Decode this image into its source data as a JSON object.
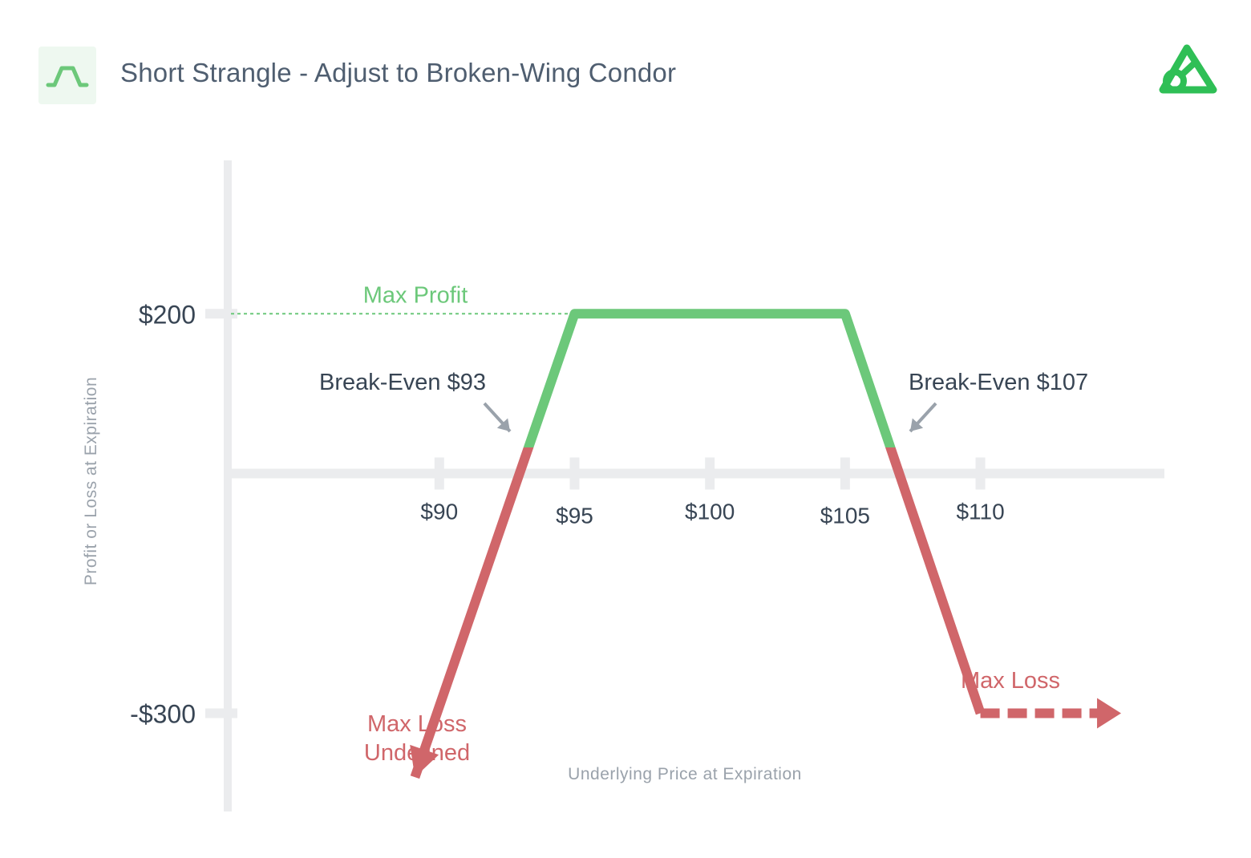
{
  "header": {
    "title": "Short Strangle - Adjust to Broken-Wing Condor",
    "badge_icon": "payoff-trapezoid-icon",
    "logo_icon": "brand-logo-icon"
  },
  "colors": {
    "profit": "#6cc87a",
    "loss": "#d0666a",
    "axis": "#ebecee",
    "text": "#384554",
    "muted": "#9aa2ab",
    "arrow": "#9aa2ab"
  },
  "chart_data": {
    "type": "line",
    "title": "Short Strangle - Adjust to Broken-Wing Condor",
    "xlabel": "Underlying Price at Expiration",
    "ylabel": "Profit or Loss at Expiration",
    "x_ticks": [
      90,
      95,
      100,
      105,
      110
    ],
    "x_tick_labels": [
      "$90",
      "$95",
      "$100",
      "$105",
      "$110"
    ],
    "y_ticks": [
      200,
      -300
    ],
    "y_tick_labels": [
      "$200",
      "-$300"
    ],
    "xlim": [
      82.3,
      116.8
    ],
    "ylim": [
      -423,
      392
    ],
    "grid": false,
    "series": [
      {
        "points": [
          [
            89.1,
            -380
          ],
          [
            95,
            200
          ],
          [
            105,
            200
          ],
          [
            110,
            -300
          ],
          [
            115.2,
            -300
          ]
        ],
        "left_end": "arrow (undefined loss)",
        "right_end": "dashed arrow (capped loss)"
      }
    ],
    "annotations": {
      "max_profit": {
        "label": "Max Profit",
        "value": 200
      },
      "break_even_low": {
        "label": "Break-Even $93",
        "x": 93
      },
      "break_even_high": {
        "label": "Break-Even $107",
        "x": 107
      },
      "max_loss_left": {
        "line1": "Max Loss",
        "line2": "Undefined"
      },
      "max_loss_right": {
        "label": "Max Loss",
        "value": -300
      }
    }
  }
}
